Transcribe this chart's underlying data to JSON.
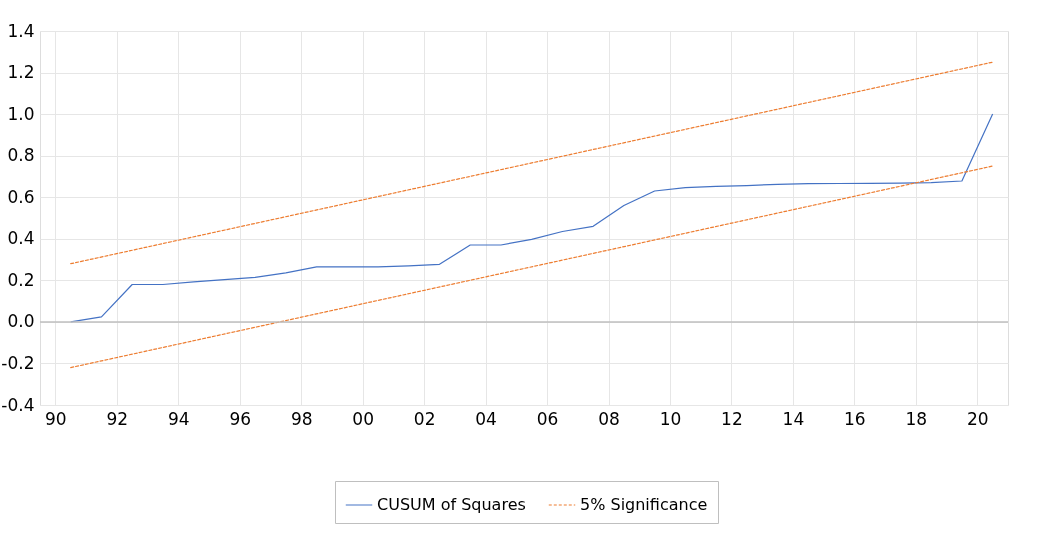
{
  "chart_data": {
    "type": "line",
    "xlim": [
      1989.5,
      2021
    ],
    "ylim": [
      -0.4,
      1.4
    ],
    "xticks": [
      {
        "value": 1990,
        "label": "90"
      },
      {
        "value": 1992,
        "label": "92"
      },
      {
        "value": 1994,
        "label": "94"
      },
      {
        "value": 1996,
        "label": "96"
      },
      {
        "value": 1998,
        "label": "98"
      },
      {
        "value": 2000,
        "label": "00"
      },
      {
        "value": 2002,
        "label": "02"
      },
      {
        "value": 2004,
        "label": "04"
      },
      {
        "value": 2006,
        "label": "06"
      },
      {
        "value": 2008,
        "label": "08"
      },
      {
        "value": 2010,
        "label": "10"
      },
      {
        "value": 2012,
        "label": "12"
      },
      {
        "value": 2014,
        "label": "14"
      },
      {
        "value": 2016,
        "label": "16"
      },
      {
        "value": 2018,
        "label": "18"
      },
      {
        "value": 2020,
        "label": "20"
      }
    ],
    "yticks": [
      {
        "value": -0.4,
        "label": "-0.4"
      },
      {
        "value": -0.2,
        "label": "-0.2"
      },
      {
        "value": 0,
        "label": "0.0"
      },
      {
        "value": 0.2,
        "label": "0.2"
      },
      {
        "value": 0.4,
        "label": "0.4"
      },
      {
        "value": 0.6,
        "label": "0.6"
      },
      {
        "value": 0.8,
        "label": "0.8"
      },
      {
        "value": 1.0,
        "label": "1.0"
      },
      {
        "value": 1.2,
        "label": "1.2"
      },
      {
        "value": 1.4,
        "label": "1.4"
      }
    ],
    "grid": true,
    "legend": "bottom",
    "marker": "none",
    "ref_lines": [
      {
        "axis": "y",
        "value": 0,
        "color": "#c0c0c0"
      }
    ],
    "series": [
      {
        "name": "CUSUM of Squares",
        "color": "#4472c4",
        "line_style": "solid",
        "x": [
          1990.5,
          1991.5,
          1992.5,
          1993.5,
          1994.5,
          1995.5,
          1996.5,
          1997.5,
          1998.5,
          1999.5,
          2000.5,
          2001.5,
          2002.5,
          2003.5,
          2004.5,
          2005.5,
          2006.5,
          2007.5,
          2008.5,
          2009.5,
          2010.5,
          2011.5,
          2012.5,
          2013.5,
          2014.5,
          2015.5,
          2016.5,
          2017.5,
          2018.5,
          2019.5,
          2020.5
        ],
        "values": [
          0.0,
          0.024,
          0.18,
          0.18,
          0.193,
          0.203,
          0.214,
          0.236,
          0.265,
          0.265,
          0.265,
          0.27,
          0.277,
          0.37,
          0.37,
          0.397,
          0.435,
          0.46,
          0.56,
          0.63,
          0.646,
          0.652,
          0.656,
          0.662,
          0.665,
          0.666,
          0.667,
          0.668,
          0.67,
          0.678,
          1.0
        ]
      },
      {
        "name": "5% Significance",
        "color": "#ed7d31",
        "line_style": "dashed",
        "x": [
          1990.5,
          2020.5
        ],
        "values": [
          0.28,
          1.25
        ]
      },
      {
        "color": "#ed7d31",
        "line_style": "dashed",
        "x": [
          1990.5,
          2020.5
        ],
        "values": [
          -0.22,
          0.75
        ]
      }
    ]
  }
}
